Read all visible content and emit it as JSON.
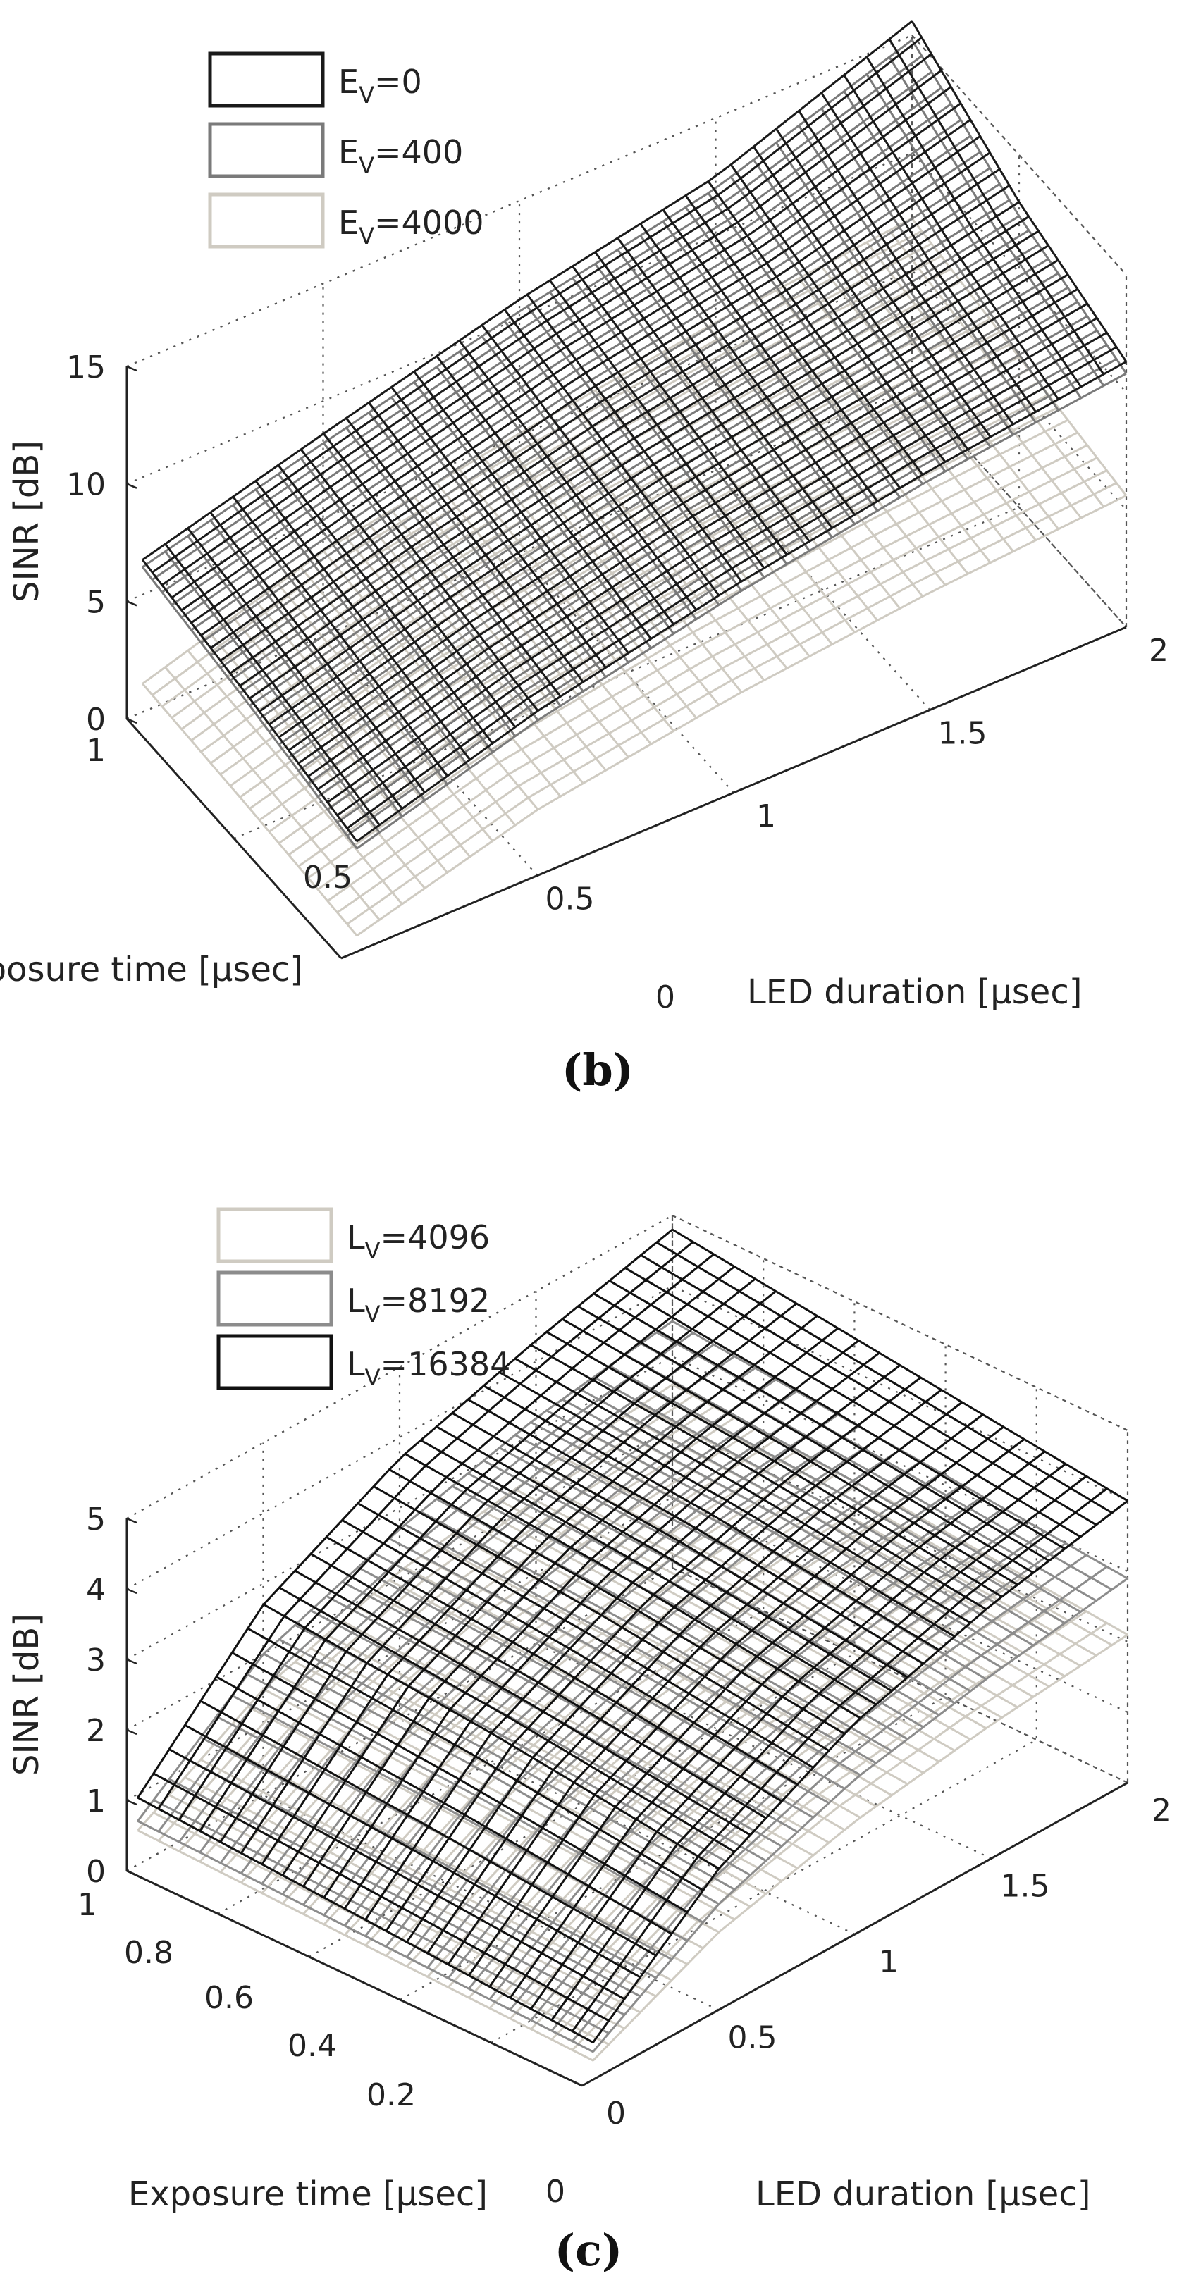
{
  "chart_data": [
    {
      "type": "surface3d",
      "panel": "b",
      "caption": "(b)",
      "zlabel": "SINR [dB]",
      "xlabel": "Exposure time [μsec]",
      "ylabel": "LED duration [μsec]",
      "xlim": [
        0,
        1
      ],
      "ylim": [
        0,
        2
      ],
      "zlim": [
        0,
        15
      ],
      "xticks": [
        "1",
        "0.5",
        "0"
      ],
      "yticks": [
        "0.5",
        "1",
        "1.5",
        "2"
      ],
      "zticks": [
        "0",
        "5",
        "10",
        "15"
      ],
      "grid": true,
      "legend_position": "top-left",
      "series": [
        {
          "name": "E_V=0",
          "sub": "V",
          "base": "E",
          "value": "=0",
          "color": "#1a1a1a",
          "z": [
            [
              4.5,
              7.0,
              8.8,
              10.2,
              11.3
            ],
            [
              5.5,
              7.8,
              9.8,
              11.2,
              13.0
            ],
            [
              6.3,
              8.6,
              10.8,
              12.5,
              15.6
            ]
          ]
        },
        {
          "name": "E_V=400",
          "sub": "V",
          "base": "E",
          "value": "=400",
          "color": "#7a7a7a",
          "z": [
            [
              4.2,
              6.6,
              8.4,
              9.8,
              10.8
            ],
            [
              5.2,
              7.4,
              9.4,
              10.8,
              12.4
            ],
            [
              6.0,
              8.2,
              10.3,
              12.0,
              14.8
            ]
          ]
        },
        {
          "name": "E_V=4000",
          "sub": "V",
          "base": "E",
          "value": "=4000",
          "color": "#cfcbc2",
          "z": [
            [
              0.5,
              2.8,
              4.1,
              5.0,
              5.6
            ],
            [
              0.8,
              3.2,
              4.6,
              5.6,
              6.4
            ],
            [
              1.0,
              3.6,
              5.1,
              6.3,
              7.2
            ]
          ]
        }
      ]
    },
    {
      "type": "surface3d",
      "panel": "c",
      "caption": "(c)",
      "zlabel": "SINR [dB]",
      "xlabel": "Exposure time  [μsec]",
      "ylabel": "LED duration [μsec]",
      "xlim": [
        0,
        1
      ],
      "ylim": [
        0,
        2
      ],
      "zlim": [
        0,
        5
      ],
      "xticks": [
        "1",
        "0.8",
        "0.6",
        "0.4",
        "0.2",
        "0"
      ],
      "yticks": [
        "0",
        "0.5",
        "1",
        "1.5",
        "2"
      ],
      "zticks": [
        "0",
        "1",
        "2",
        "3",
        "4",
        "5"
      ],
      "grid": true,
      "legend_position": "top-left",
      "series": [
        {
          "name": "L_V=4096",
          "sub": "V",
          "base": "L",
          "value": "=4096",
          "color": "#cfcbc2",
          "z": [
            [
              0.2,
              1.1,
              1.6,
              1.9,
              2.1
            ],
            [
              0.3,
              1.3,
              1.9,
              2.2,
              2.4
            ],
            [
              0.4,
              1.5,
              2.1,
              2.4,
              2.6
            ]
          ]
        },
        {
          "name": "L_V=8192",
          "sub": "V",
          "base": "L",
          "value": "=8192",
          "color": "#8c8c8c",
          "z": [
            [
              0.3,
              1.5,
              2.2,
              2.6,
              2.9
            ],
            [
              0.4,
              1.8,
              2.5,
              3.0,
              3.2
            ],
            [
              0.5,
              2.0,
              2.7,
              3.2,
              3.5
            ]
          ]
        },
        {
          "name": "L_V=16384",
          "sub": "V",
          "base": "L",
          "value": "=16384",
          "color": "#111111",
          "z": [
            [
              0.4,
              2.0,
              3.0,
              3.6,
              4.0
            ],
            [
              0.6,
              2.4,
              3.4,
              4.0,
              4.4
            ],
            [
              0.8,
              2.7,
              3.7,
              4.3,
              4.8
            ]
          ]
        }
      ]
    }
  ]
}
